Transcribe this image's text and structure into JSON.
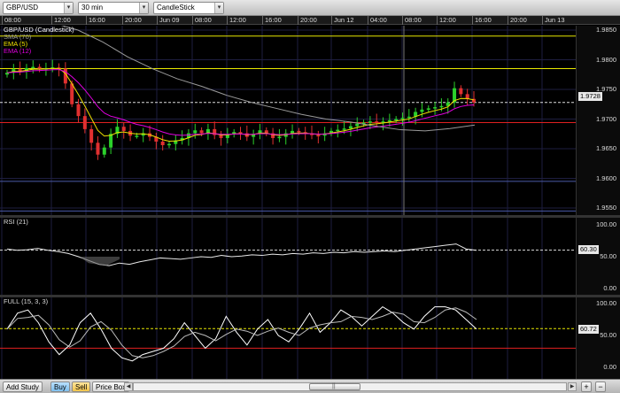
{
  "toolbar": {
    "symbol": "GBP/USD",
    "interval": "30 min",
    "chart_style": "CandleStick"
  },
  "time_axis": {
    "ticks": [
      "08:00",
      "12:00",
      "16:00",
      "20:00",
      "Jun 09",
      "08:00",
      "12:00",
      "16:00",
      "20:00",
      "Jun 12",
      "04:00",
      "08:00",
      "12:00",
      "16:00",
      "20:00",
      "Jun 13"
    ]
  },
  "price_panel": {
    "title": "GBP/USD (Candlestick)",
    "sma_label": "SMA (70)",
    "ema5_label": "EMA (5)",
    "ema12_label": "EMA (12)",
    "current_price": "1.9728",
    "y_ticks": [
      "1.9850",
      "1.9800",
      "1.9750",
      "1.9700",
      "1.9650",
      "1.9600",
      "1.9550"
    ],
    "colors": {
      "up": "#2bd12b",
      "down": "#e03030",
      "ema5": "#f0e000",
      "ema12": "#e000e0",
      "sma": "#9a9a9a",
      "hline_yellow": "#e8e800",
      "hline_red": "#e02020",
      "hline_blue": "#4a5aa8"
    }
  },
  "rsi_panel": {
    "title": "RSI (21)",
    "current_value": "60.30",
    "y_ticks": [
      "100.00",
      "50.00",
      "0.00"
    ]
  },
  "full_panel": {
    "title": "FULL (15, 3, 3)",
    "current_value": "60.72",
    "y_ticks": [
      "100.00",
      "50.00",
      "0.00"
    ]
  },
  "bottom_bar": {
    "add_study": "Add Study",
    "buy": "Buy",
    "sell": "Sell",
    "price_box": "Price Box",
    "scroll_grip": "||",
    "zoom_in": "+",
    "zoom_out": "−"
  },
  "chart_data": {
    "type": "candlestick",
    "series_close": [
      1.9778,
      1.9784,
      1.9781,
      1.9786,
      1.9788,
      1.9784,
      1.9786,
      1.9787,
      1.9785,
      1.976,
      1.9725,
      1.9705,
      1.9683,
      1.966,
      1.964,
      1.9652,
      1.9675,
      1.9687,
      1.968,
      1.9672,
      1.9672,
      1.9676,
      1.967,
      1.9662,
      1.9656,
      1.9658,
      1.9664,
      1.9668,
      1.9676,
      1.9681,
      1.9676,
      1.9683,
      1.9673,
      1.9668,
      1.9674,
      1.9678,
      1.9676,
      1.967,
      1.9675,
      1.9681,
      1.9676,
      1.9668,
      1.967,
      1.9676,
      1.968,
      1.9678,
      1.9676,
      1.9673,
      1.9672,
      1.9676,
      1.968,
      1.9682,
      1.9684,
      1.9688,
      1.9692,
      1.9694,
      1.9696,
      1.9694,
      1.9696,
      1.9698,
      1.97,
      1.9702,
      1.9704,
      1.9712,
      1.9716,
      1.9718,
      1.972,
      1.9722,
      1.9728,
      1.9752,
      1.9742,
      1.9734,
      1.9728
    ]
  }
}
